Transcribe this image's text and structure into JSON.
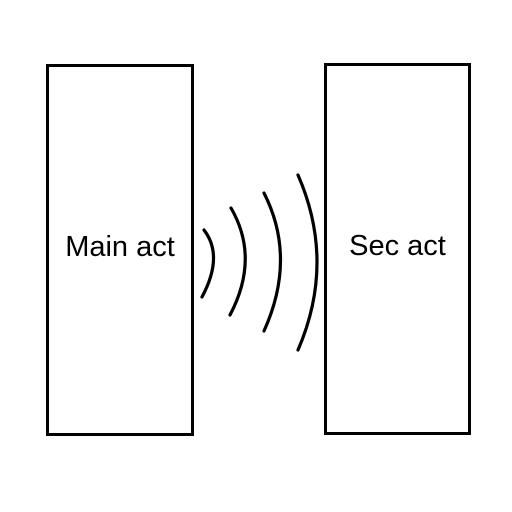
{
  "main_act": {
    "label": "Main act"
  },
  "sec_act": {
    "label": "Sec act"
  },
  "signal": {
    "icon": "wave-arcs-icon",
    "arc_count": 4,
    "color": "#000000"
  }
}
